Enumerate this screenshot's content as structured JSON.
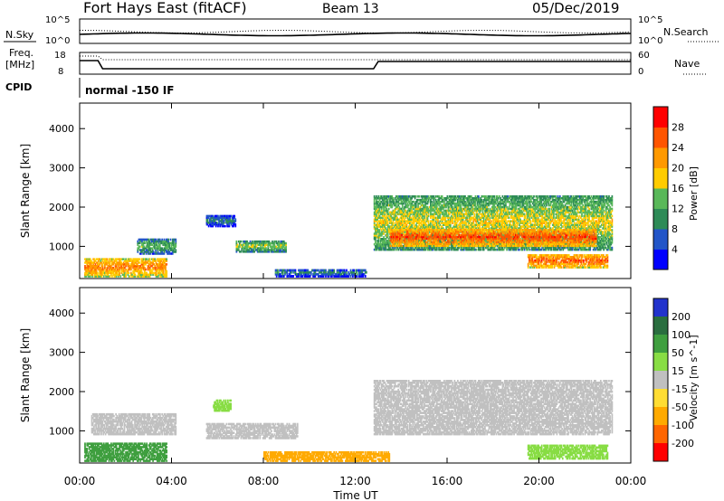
{
  "header": {
    "station": "Fort Hays East (fitACF)",
    "beam": "Beam 13",
    "date": "05/Dec/2019"
  },
  "status_panel": {
    "nsky_label": "N.Sky",
    "nsky_top": "10^5",
    "nsky_bottom": "10^0",
    "nsearch_label": "N.Search",
    "nsearch_top": "10^5",
    "nsearch_bottom": "10^0",
    "freq_label_1": "Freq.",
    "freq_label_2": "[MHz]",
    "freq_top": "18",
    "freq_bottom": "8",
    "nave_label": "Nave",
    "nave_top": "60",
    "nave_bottom": "0",
    "cpid_label": "CPID",
    "cpid_value": "normal -150 IF"
  },
  "colors": {
    "power_scale": [
      "#0000ff",
      "#2255c8",
      "#2e8b57",
      "#59b859",
      "#ffcc00",
      "#ff9900",
      "#ff5500",
      "#ff0000"
    ],
    "velocity_scale": [
      "#2233cc",
      "#2a6e3f",
      "#3f9f3f",
      "#88dd44",
      "#c0c0c0",
      "#ffdd33",
      "#ffaa00",
      "#ff6600",
      "#ff0000"
    ],
    "ground_scatter": "#c0c0c0"
  },
  "chart_data": [
    {
      "type": "heatmap",
      "title": "",
      "xlabel": "Time UT",
      "ylabel": "Slant Range [km]",
      "x_ticks": [
        "00:00",
        "04:00",
        "08:00",
        "12:00",
        "16:00",
        "20:00",
        "00:00"
      ],
      "y_ticks": [
        "1000",
        "2000",
        "3000",
        "4000"
      ],
      "xlim": [
        0,
        24
      ],
      "ylim": [
        180,
        4650
      ],
      "colorbar": {
        "label": "Power [dB]",
        "ticks": [
          "4",
          "8",
          "12",
          "16",
          "20",
          "24",
          "28"
        ],
        "range": [
          0,
          32
        ]
      },
      "regions": [
        {
          "t0": 0.2,
          "t1": 3.8,
          "r0": 220,
          "r1": 700,
          "power": 24
        },
        {
          "t0": 2.5,
          "t1": 4.2,
          "r0": 800,
          "r1": 1200,
          "power": 14
        },
        {
          "t0": 6.8,
          "t1": 9.0,
          "r0": 850,
          "r1": 1150,
          "power": 16
        },
        {
          "t0": 5.5,
          "t1": 6.8,
          "r0": 1500,
          "r1": 1800,
          "power": 10
        },
        {
          "t0": 12.8,
          "t1": 23.2,
          "r0": 900,
          "r1": 2300,
          "power": 18
        },
        {
          "t0": 13.5,
          "t1": 22.5,
          "r0": 1000,
          "r1": 1450,
          "power": 27
        },
        {
          "t0": 19.5,
          "t1": 23.0,
          "r0": 450,
          "r1": 800,
          "power": 26
        },
        {
          "t0": 8.5,
          "t1": 12.5,
          "r0": 220,
          "r1": 420,
          "power": 10
        }
      ]
    },
    {
      "type": "heatmap",
      "title": "",
      "xlabel": "Time UT",
      "ylabel": "Slant Range [km]",
      "x_ticks": [
        "00:00",
        "04:00",
        "08:00",
        "12:00",
        "16:00",
        "20:00",
        "00:00"
      ],
      "y_ticks": [
        "1000",
        "2000",
        "3000",
        "4000"
      ],
      "xlim": [
        0,
        24
      ],
      "ylim": [
        180,
        4650
      ],
      "colorbar": {
        "label": "Velocity [m s^-1]",
        "ticks": [
          "200",
          "100",
          "50",
          "15",
          "-15",
          "-50",
          "-100",
          "-200"
        ],
        "range": [
          -250,
          250
        ]
      },
      "regions": [
        {
          "t0": 0.2,
          "t1": 3.8,
          "r0": 220,
          "r1": 700,
          "velocity": 60
        },
        {
          "t0": 0.5,
          "t1": 4.2,
          "r0": 900,
          "r1": 1450,
          "velocity": 0
        },
        {
          "t0": 5.5,
          "t1": 9.5,
          "r0": 800,
          "r1": 1200,
          "velocity": 0
        },
        {
          "t0": 12.8,
          "t1": 23.2,
          "r0": 900,
          "r1": 2300,
          "velocity": 0
        },
        {
          "t0": 19.5,
          "t1": 23.0,
          "r0": 280,
          "r1": 650,
          "velocity": 40
        },
        {
          "t0": 8.0,
          "t1": 13.5,
          "r0": 220,
          "r1": 480,
          "velocity": -60
        },
        {
          "t0": 5.8,
          "t1": 6.6,
          "r0": 1500,
          "r1": 1800,
          "velocity": 40
        }
      ]
    }
  ]
}
